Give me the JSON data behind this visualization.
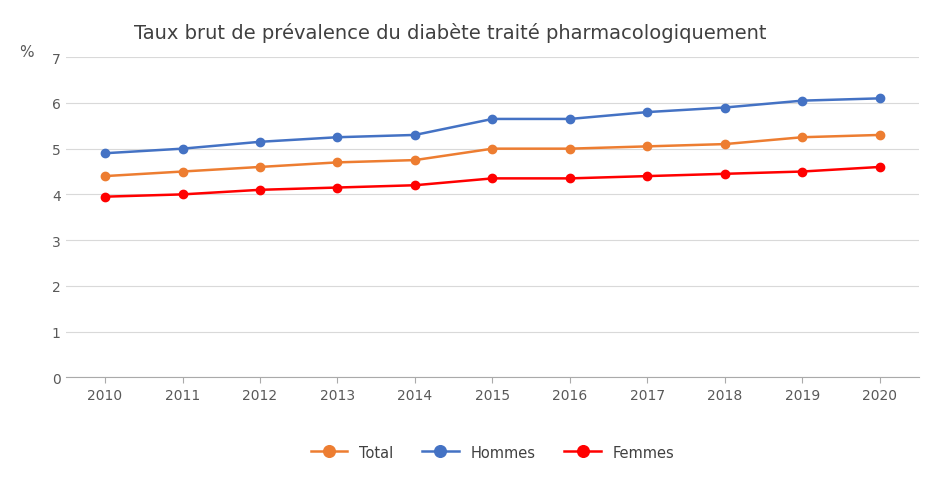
{
  "title": "Taux brut de prévalence du diabète traité pharmacologiquement",
  "ylabel": "%",
  "years": [
    2010,
    2011,
    2012,
    2013,
    2014,
    2015,
    2016,
    2017,
    2018,
    2019,
    2020
  ],
  "total": [
    4.4,
    4.5,
    4.6,
    4.7,
    4.75,
    5.0,
    5.0,
    5.05,
    5.1,
    5.25,
    5.3
  ],
  "hommes": [
    4.9,
    5.0,
    5.15,
    5.25,
    5.3,
    5.65,
    5.65,
    5.8,
    5.9,
    6.05,
    6.1
  ],
  "femmes": [
    3.95,
    4.0,
    4.1,
    4.15,
    4.2,
    4.35,
    4.35,
    4.4,
    4.45,
    4.5,
    4.6
  ],
  "color_total": "#ED7D31",
  "color_hommes": "#4472C4",
  "color_femmes": "#FF0000",
  "ylim": [
    0,
    7
  ],
  "yticks": [
    0,
    1,
    2,
    3,
    4,
    5,
    6,
    7
  ],
  "legend_labels": [
    "Total",
    "Hommes",
    "Femmes"
  ],
  "background_color": "#FFFFFF",
  "grid_color": "#D9D9D9",
  "title_fontsize": 14,
  "tick_fontsize": 10,
  "marker_size": 6,
  "line_width": 1.8
}
